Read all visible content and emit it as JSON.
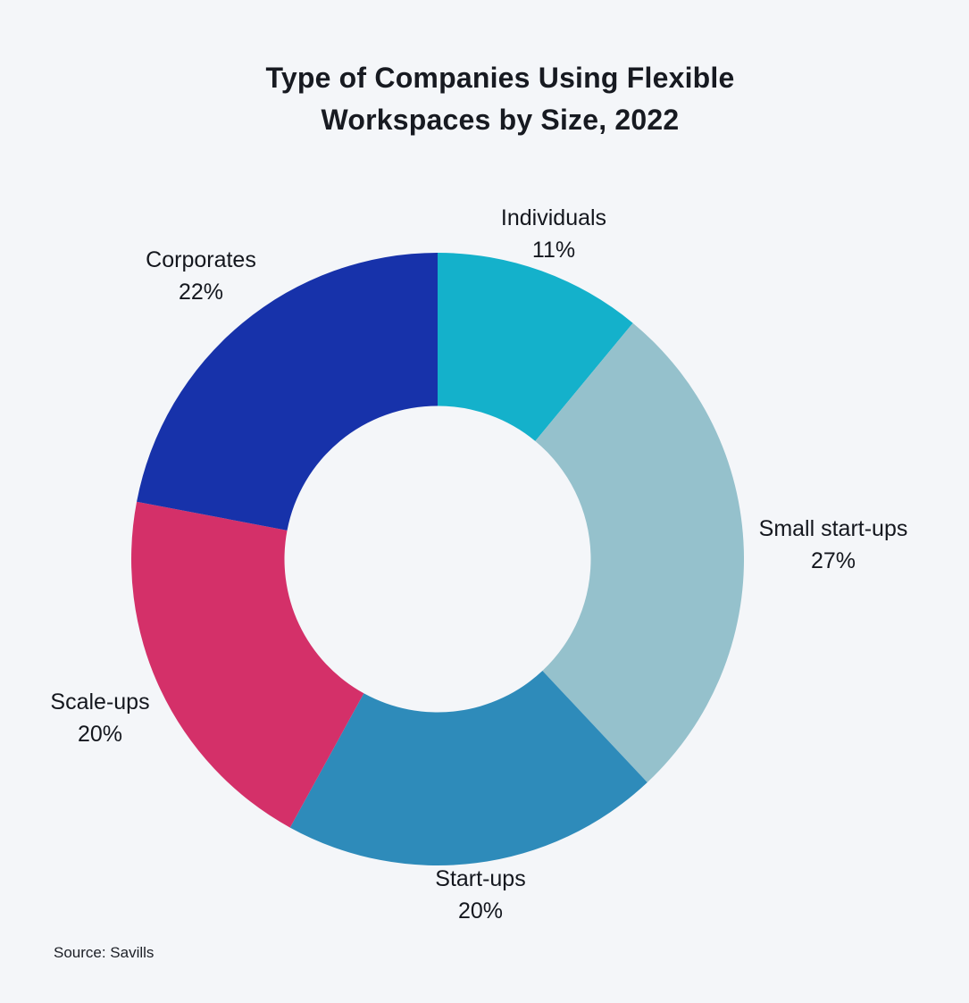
{
  "page": {
    "background_color": "#f4f6f9",
    "text_color": "#14171e"
  },
  "title": {
    "line1": "Type of Companies Using Flexible",
    "line2": "Workspaces by Size, 2022"
  },
  "source": "Source: Savills",
  "chart_data": {
    "type": "pie",
    "subtype": "donut",
    "title": "Type of Companies Using Flexible Workspaces by Size, 2022",
    "categories": [
      "Individuals",
      "Small start-ups",
      "Start-ups",
      "Scale-ups",
      "Corporates"
    ],
    "values": [
      11,
      27,
      20,
      20,
      22
    ],
    "value_labels": [
      "11%",
      "27%",
      "20%",
      "20%",
      "22%"
    ],
    "unit": "%",
    "colors": [
      "#14b1cb",
      "#95c1cc",
      "#2e8bba",
      "#d43069",
      "#1732aa"
    ],
    "start_angle_deg": 0,
    "direction": "clockwise",
    "inner_radius_ratio": 0.5,
    "legend_position": "labels-outside",
    "source": "Savills"
  }
}
